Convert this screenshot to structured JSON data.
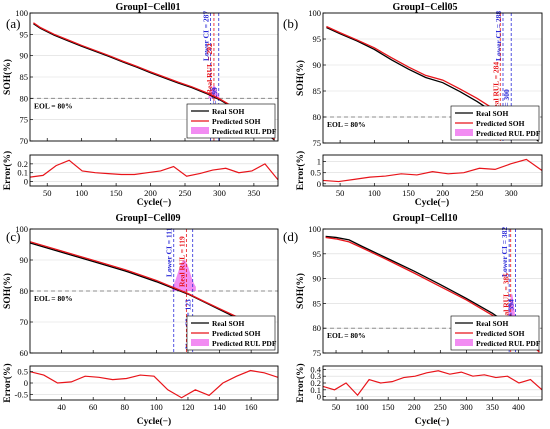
{
  "figure": {
    "colors": {
      "real": "#000000",
      "predicted": "#e8141a",
      "pdf_fill": "#ee66ee",
      "eol_line": "#8c8c8c",
      "lower_ci": "#2a2ad8",
      "upper_ci": "#2a2ad8",
      "real_rul": "#e8141a"
    }
  },
  "chart_data": [
    {
      "panel_label": "(a)",
      "type": "line",
      "title": "GroupI−Cell01",
      "ylabel": "SOH(%)",
      "ylim": [
        70,
        100
      ],
      "yticks": [
        70,
        75,
        80,
        85,
        90,
        95,
        100
      ],
      "ytick_labels": [
        "70",
        "75",
        "80",
        "85",
        "90",
        "95",
        "100"
      ],
      "eol_level": 80,
      "eol_label": "EOL = 80%",
      "legend": {
        "position": "bottom-right",
        "labels": [
          "Real SOH",
          "Predicted SOH",
          "Predicted RUL PDF"
        ]
      },
      "annotations": [
        {
          "kind": "lower_ci",
          "text": "Lower CI = 287",
          "x": 287
        },
        {
          "kind": "real_rul",
          "text": "Real RUL = 292",
          "x": 292
        },
        {
          "kind": "upper_ci",
          "text": "Upper CI = 299",
          "x": 299
        }
      ],
      "pdf": {
        "from": 284,
        "to": 300,
        "peak": 83
      },
      "x": [
        30,
        40,
        60,
        80,
        100,
        120,
        140,
        160,
        180,
        200,
        220,
        240,
        260,
        280,
        300,
        320,
        340,
        360,
        380
      ],
      "series": [
        {
          "name": "Real SOH",
          "values": [
            97.5,
            96.4,
            94.8,
            93.5,
            92.2,
            91.0,
            89.8,
            88.5,
            87.3,
            86.0,
            84.8,
            83.6,
            82.5,
            81.2,
            79.7,
            77.8,
            75.5,
            72.8,
            70.2
          ]
        },
        {
          "name": "Predicted SOH",
          "values": [
            97.7,
            96.6,
            95.0,
            93.7,
            92.4,
            91.2,
            90.0,
            88.7,
            87.5,
            86.2,
            85.0,
            83.8,
            82.7,
            81.4,
            79.9,
            78.0,
            75.7,
            73.0,
            70.4
          ]
        }
      ],
      "error": {
        "ylabel": "Error(%)",
        "ylim": [
          -0.05,
          0.3
        ],
        "yticks": [
          0,
          0.1,
          0.2
        ],
        "ytick_labels": [
          "0",
          "0.1",
          "0.2"
        ],
        "values": [
          0.05,
          0.07,
          0.18,
          0.24,
          0.12,
          0.1,
          0.09,
          0.08,
          0.08,
          0.1,
          0.12,
          0.17,
          0.06,
          0.09,
          0.13,
          0.15,
          0.1,
          0.12,
          0.2,
          0.02
        ]
      },
      "xlabel": "Cycle(−)",
      "xlim": [
        25,
        385
      ],
      "xticks": [
        50,
        100,
        150,
        200,
        250,
        300,
        350
      ],
      "xtick_labels": [
        "50",
        "100",
        "150",
        "200",
        "250",
        "300",
        "350"
      ]
    },
    {
      "panel_label": "(b)",
      "type": "line",
      "title": "GroupI−Cell05",
      "ylabel": "SOH(%)",
      "ylim": [
        75,
        100
      ],
      "yticks": [
        75,
        80,
        85,
        90,
        95,
        100
      ],
      "ytick_labels": [
        "75",
        "80",
        "85",
        "90",
        "95",
        "100"
      ],
      "eol_level": 80,
      "eol_label": "EOL = 80%",
      "legend": {
        "position": "bottom-right",
        "labels": [
          "Real SOH",
          "Predicted SOH",
          "Predicted RUL PDF"
        ]
      },
      "annotations": [
        {
          "kind": "lower_ci",
          "text": "Lower CI = 288",
          "x": 288
        },
        {
          "kind": "real_rul",
          "text": "Real RUL = 284",
          "x": 284
        },
        {
          "kind": "upper_ci",
          "text": "Upper CI = 300",
          "x": 300
        }
      ],
      "pdf": {
        "from": 286,
        "to": 302,
        "peak": 81.5
      },
      "x": [
        30,
        50,
        75,
        100,
        125,
        150,
        175,
        200,
        225,
        250,
        275,
        300,
        325,
        340
      ],
      "series": [
        {
          "name": "Real SOH",
          "values": [
            97.2,
            96.0,
            94.6,
            93.0,
            91.0,
            89.2,
            87.6,
            86.6,
            84.9,
            83.0,
            80.8,
            78.9,
            77.0,
            75.3
          ]
        },
        {
          "name": "Predicted SOH",
          "values": [
            97.4,
            96.2,
            94.8,
            93.3,
            91.4,
            89.6,
            88.0,
            87.1,
            85.4,
            83.6,
            81.5,
            79.5,
            77.8,
            75.6
          ]
        }
      ],
      "error": {
        "ylabel": "Error(%)",
        "ylim": [
          -0.1,
          1.3
        ],
        "yticks": [
          0,
          0.5,
          1
        ],
        "ytick_labels": [
          "0",
          "0.5",
          "1"
        ],
        "values": [
          0.15,
          0.1,
          0.2,
          0.3,
          0.35,
          0.45,
          0.4,
          0.55,
          0.45,
          0.5,
          0.7,
          0.65,
          0.9,
          1.1,
          0.6
        ]
      },
      "xlabel": "Cycle(−)",
      "xlim": [
        25,
        345
      ],
      "xticks": [
        50,
        100,
        150,
        200,
        250,
        300
      ],
      "xtick_labels": [
        "50",
        "100",
        "150",
        "200",
        "250",
        "300"
      ]
    },
    {
      "panel_label": "(c)",
      "type": "line",
      "title": "GroupI−Cell09",
      "ylabel": "SOH(%)",
      "ylim": [
        60,
        100
      ],
      "yticks": [
        60,
        70,
        80,
        90,
        100
      ],
      "ytick_labels": [
        "60",
        "70",
        "80",
        "90",
        "100"
      ],
      "eol_level": 80,
      "eol_label": "EOL = 80%",
      "legend": {
        "position": "bottom-right",
        "labels": [
          "Real SOH",
          "Predicted SOH",
          "Predicted RUL PDF"
        ]
      },
      "annotations": [
        {
          "kind": "lower_ci",
          "text": "Lower CI = 111",
          "x": 111
        },
        {
          "kind": "real_rul",
          "text": "Real RUL = 119",
          "x": 119
        },
        {
          "kind": "upper_ci",
          "text": "Upper CI = 123",
          "x": 123
        }
      ],
      "pdf": {
        "from": 110,
        "to": 125,
        "peak": 90
      },
      "x": [
        20,
        40,
        60,
        80,
        100,
        110,
        120,
        130,
        140,
        150,
        160,
        170,
        175
      ],
      "series": [
        {
          "name": "Real SOH",
          "values": [
            95.5,
            92.5,
            89.5,
            86.5,
            83.0,
            81.0,
            79.0,
            76.5,
            74.0,
            71.5,
            68.5,
            65.5,
            63.5
          ]
        },
        {
          "name": "Predicted SOH",
          "values": [
            95.9,
            92.9,
            89.9,
            86.9,
            83.4,
            81.3,
            79.2,
            76.7,
            74.3,
            71.9,
            69.0,
            66.1,
            64.0
          ]
        }
      ],
      "error": {
        "ylabel": "Error(%)",
        "ylim": [
          -0.75,
          0.75
        ],
        "yticks": [
          -0.5,
          0,
          0.5
        ],
        "ytick_labels": [
          "-0.5",
          "0",
          "0.5"
        ],
        "values": [
          0.5,
          0.35,
          0.0,
          0.05,
          0.3,
          0.25,
          0.15,
          0.2,
          0.35,
          0.3,
          -0.3,
          -0.65,
          -0.3,
          -0.55,
          0.0,
          0.3,
          0.55,
          0.45,
          0.25
        ]
      },
      "xlabel": "Cycle(−)",
      "xlim": [
        20,
        177
      ],
      "xticks": [
        40,
        60,
        80,
        100,
        120,
        140,
        160
      ],
      "xtick_labels": [
        "40",
        "60",
        "80",
        "100",
        "120",
        "140",
        "160"
      ]
    },
    {
      "panel_label": "(d)",
      "type": "line",
      "title": "GroupI−Cell10",
      "ylabel": "SOH(%)",
      "ylim": [
        75,
        100
      ],
      "yticks": [
        75,
        80,
        85,
        90,
        95,
        100
      ],
      "ytick_labels": [
        "75",
        "80",
        "85",
        "90",
        "95",
        "100"
      ],
      "eol_level": 80,
      "eol_label": "EOL = 80%",
      "legend": {
        "position": "bottom-right",
        "labels": [
          "Real SOH",
          "Predicted SOH",
          "Predicted RUL PDF"
        ]
      },
      "annotations": [
        {
          "kind": "lower_ci",
          "text": "Lower CI = 382",
          "x": 382
        },
        {
          "kind": "real_rul",
          "text": "Real RUL = 385",
          "x": 385
        },
        {
          "kind": "upper_ci",
          "text": "Upper CI = 394",
          "x": 394
        }
      ],
      "pdf": {
        "from": 378,
        "to": 396,
        "peak": 87
      },
      "x": [
        30,
        50,
        75,
        100,
        150,
        200,
        250,
        300,
        350,
        375,
        400,
        425,
        440
      ],
      "series": [
        {
          "name": "Real SOH",
          "values": [
            98.5,
            98.3,
            97.8,
            96.5,
            94.0,
            91.5,
            88.8,
            86.0,
            83.0,
            81.2,
            79.3,
            77.0,
            75.5
          ]
        },
        {
          "name": "Predicted SOH",
          "values": [
            98.3,
            98.0,
            97.4,
            96.2,
            93.7,
            91.1,
            88.4,
            85.7,
            82.6,
            80.8,
            79.0,
            76.6,
            75.2
          ]
        }
      ],
      "error": {
        "ylabel": "Error(%)",
        "ylim": [
          -0.05,
          0.45
        ],
        "yticks": [
          0,
          0.1,
          0.2,
          0.3,
          0.4
        ],
        "ytick_labels": [
          "0",
          "0.1",
          "0.2",
          "0.3",
          "0.4"
        ],
        "values": [
          0.15,
          0.1,
          0.2,
          0.02,
          0.25,
          0.2,
          0.22,
          0.28,
          0.3,
          0.35,
          0.38,
          0.33,
          0.36,
          0.3,
          0.32,
          0.28,
          0.3,
          0.2,
          0.25,
          0.1
        ]
      },
      "xlabel": "Cycle(−)",
      "xlim": [
        25,
        445
      ],
      "xticks": [
        50,
        100,
        150,
        200,
        250,
        300,
        350,
        400
      ],
      "xtick_labels": [
        "50",
        "100",
        "150",
        "200",
        "250",
        "300",
        "350",
        "400"
      ]
    }
  ]
}
